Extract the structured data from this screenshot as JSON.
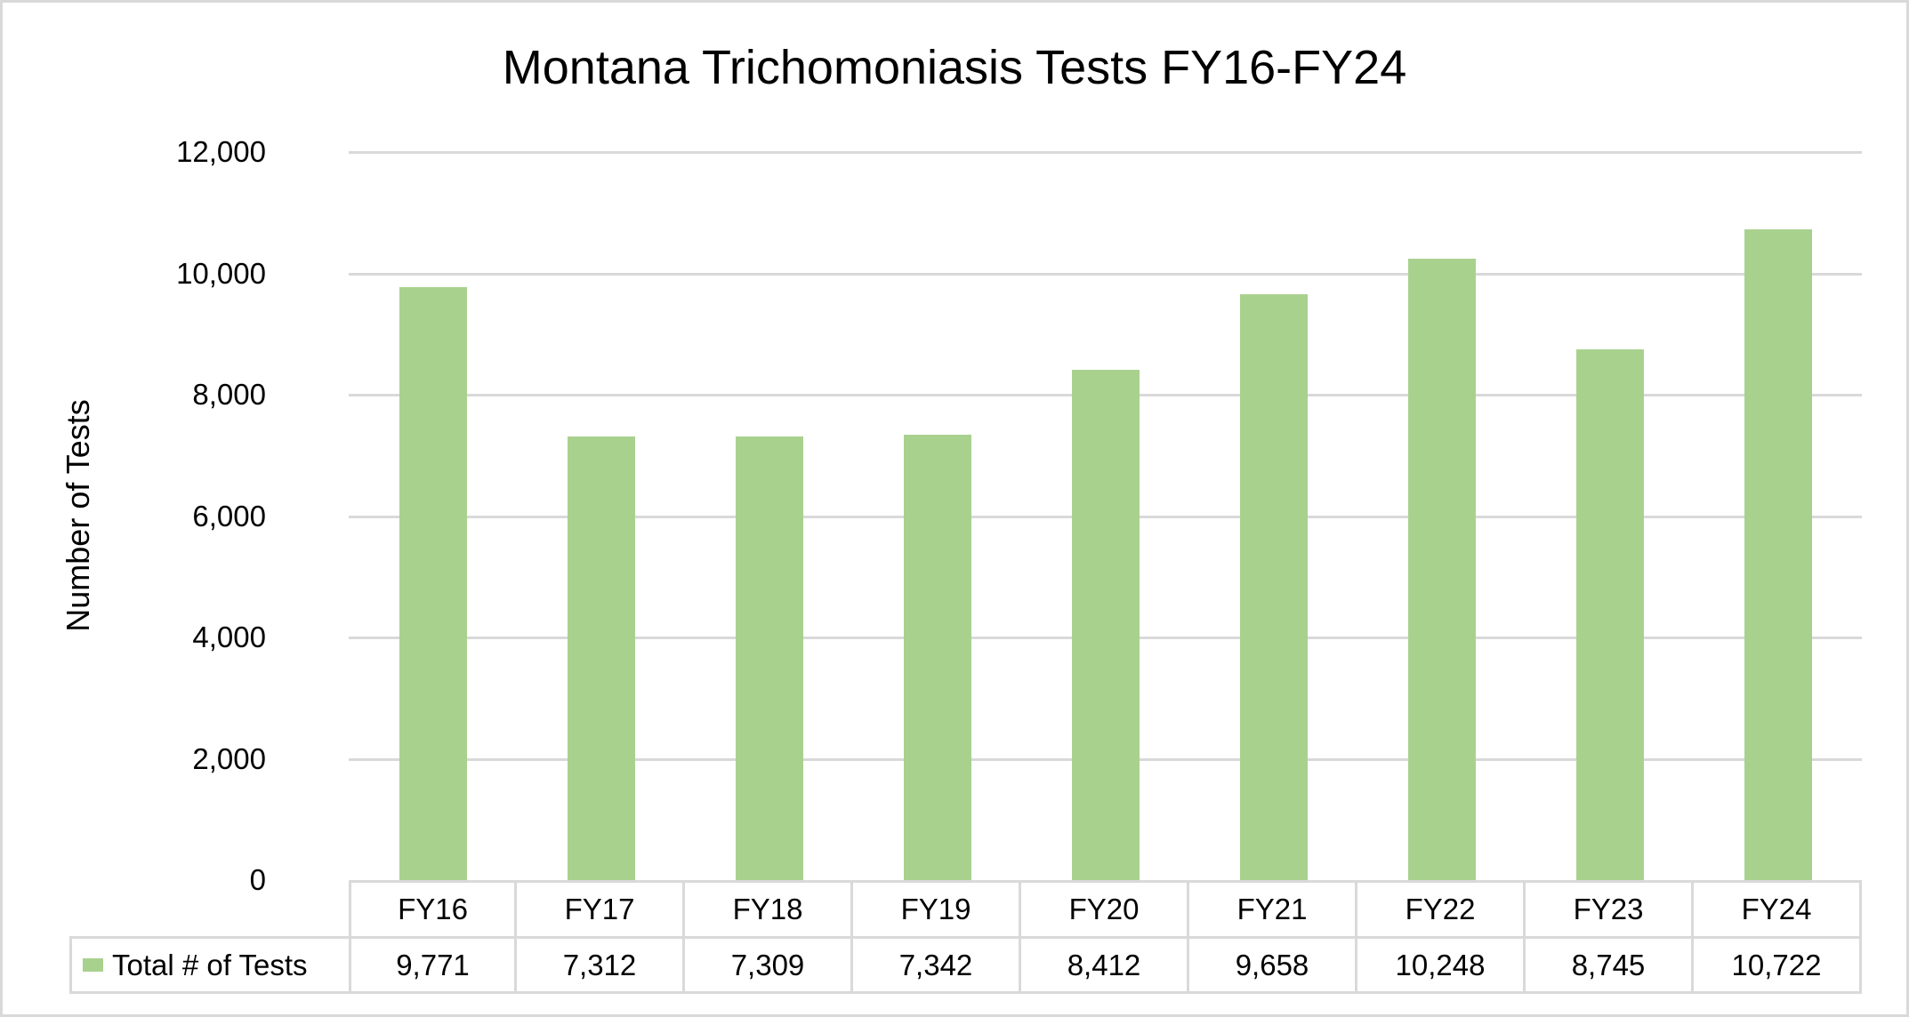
{
  "chart": {
    "title": "Montana Trichomoniasis Tests FY16-FY24",
    "y_axis_label": "Number of Tests",
    "y_ticks": [
      "12,000",
      "10,000",
      "8,000",
      "6,000",
      "4,000",
      "2,000",
      "0"
    ],
    "series_label": "Total # of Tests",
    "bar_color": "#A9D18E",
    "gridline_color": "#D9D9D9",
    "categories": [
      "FY16",
      "FY17",
      "FY18",
      "FY19",
      "FY20",
      "FY21",
      "FY22",
      "FY23",
      "FY24"
    ],
    "values_display": [
      "9,771",
      "7,312",
      "7,309",
      "7,342",
      "8,412",
      "9,658",
      "10,248",
      "8,745",
      "10,722"
    ]
  },
  "chart_data": {
    "type": "bar",
    "title": "Montana Trichomoniasis Tests FY16-FY24",
    "xlabel": "",
    "ylabel": "Number of Tests",
    "categories": [
      "FY16",
      "FY17",
      "FY18",
      "FY19",
      "FY20",
      "FY21",
      "FY22",
      "FY23",
      "FY24"
    ],
    "series": [
      {
        "name": "Total # of Tests",
        "color": "#A9D18E",
        "values": [
          9771,
          7312,
          7309,
          7342,
          8412,
          9658,
          10248,
          8745,
          10722
        ]
      }
    ],
    "ylim": [
      0,
      12000
    ],
    "yticks": [
      0,
      2000,
      4000,
      6000,
      8000,
      10000,
      12000
    ],
    "grid": true,
    "legend_position": "data-table",
    "data_table": true
  }
}
